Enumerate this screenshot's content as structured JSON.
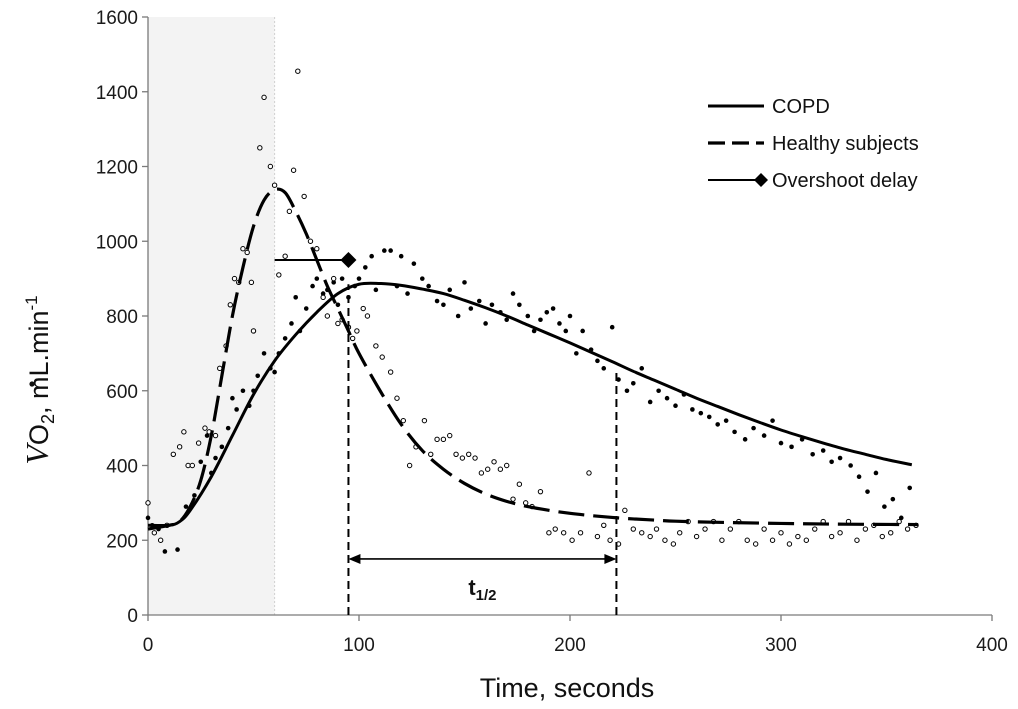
{
  "chart_data": {
    "type": "scatter",
    "xlabel": "Time, seconds",
    "ylabel": {
      "v": "V",
      "o": "O",
      "sub": "2",
      "unit": ", mL.min",
      "sup": "-1"
    },
    "xlim": [
      0,
      400
    ],
    "ylim": [
      0,
      1600
    ],
    "x_ticks": [
      "0",
      "100",
      "200",
      "300",
      "400"
    ],
    "y_ticks": [
      "0",
      "200",
      "400",
      "600",
      "800",
      "1000",
      "1200",
      "1400",
      "1600"
    ],
    "grid": false,
    "legend_position": "top-right",
    "shaded_region": {
      "x": [
        0,
        60
      ],
      "color": "#f3f3f3"
    },
    "colors": {
      "line": "#000000",
      "shade": "#f3f3f3"
    },
    "series": [
      {
        "name": "COPD",
        "style": "solid",
        "curve": [
          [
            0,
            240
          ],
          [
            10,
            240
          ],
          [
            15,
            250
          ],
          [
            20,
            280
          ],
          [
            30,
            370
          ],
          [
            40,
            480
          ],
          [
            50,
            590
          ],
          [
            60,
            680
          ],
          [
            70,
            750
          ],
          [
            80,
            810
          ],
          [
            90,
            860
          ],
          [
            100,
            885
          ],
          [
            110,
            887
          ],
          [
            120,
            882
          ],
          [
            130,
            872
          ],
          [
            140,
            860
          ],
          [
            150,
            842
          ],
          [
            160,
            822
          ],
          [
            170,
            800
          ],
          [
            180,
            776
          ],
          [
            190,
            752
          ],
          [
            200,
            728
          ],
          [
            210,
            703
          ],
          [
            220,
            678
          ],
          [
            230,
            652
          ],
          [
            240,
            628
          ],
          [
            250,
            604
          ],
          [
            260,
            580
          ],
          [
            270,
            558
          ],
          [
            280,
            536
          ],
          [
            290,
            515
          ],
          [
            300,
            495
          ],
          [
            310,
            477
          ],
          [
            320,
            460
          ],
          [
            330,
            444
          ],
          [
            340,
            430
          ],
          [
            350,
            416
          ],
          [
            362,
            402
          ]
        ],
        "points": [
          [
            0,
            260
          ],
          [
            2,
            240
          ],
          [
            5,
            230
          ],
          [
            8,
            170
          ],
          [
            14,
            175
          ],
          [
            18,
            290
          ],
          [
            22,
            320
          ],
          [
            25,
            410
          ],
          [
            28,
            480
          ],
          [
            30,
            380
          ],
          [
            32,
            420
          ],
          [
            35,
            450
          ],
          [
            38,
            500
          ],
          [
            40,
            580
          ],
          [
            42,
            550
          ],
          [
            45,
            600
          ],
          [
            48,
            560
          ],
          [
            50,
            600
          ],
          [
            52,
            640
          ],
          [
            55,
            700
          ],
          [
            58,
            660
          ],
          [
            60,
            650
          ],
          [
            62,
            700
          ],
          [
            65,
            740
          ],
          [
            68,
            780
          ],
          [
            70,
            850
          ],
          [
            72,
            760
          ],
          [
            75,
            820
          ],
          [
            78,
            880
          ],
          [
            80,
            900
          ],
          [
            83,
            860
          ],
          [
            85,
            870
          ],
          [
            88,
            890
          ],
          [
            90,
            830
          ],
          [
            92,
            900
          ],
          [
            95,
            850
          ],
          [
            98,
            880
          ],
          [
            100,
            900
          ],
          [
            103,
            930
          ],
          [
            106,
            960
          ],
          [
            108,
            870
          ],
          [
            112,
            975
          ],
          [
            115,
            975
          ],
          [
            118,
            880
          ],
          [
            120,
            960
          ],
          [
            123,
            860
          ],
          [
            126,
            940
          ],
          [
            130,
            900
          ],
          [
            133,
            880
          ],
          [
            137,
            840
          ],
          [
            140,
            830
          ],
          [
            143,
            870
          ],
          [
            147,
            800
          ],
          [
            150,
            890
          ],
          [
            153,
            820
          ],
          [
            157,
            840
          ],
          [
            160,
            780
          ],
          [
            163,
            830
          ],
          [
            167,
            810
          ],
          [
            170,
            790
          ],
          [
            173,
            860
          ],
          [
            176,
            830
          ],
          [
            180,
            800
          ],
          [
            183,
            760
          ],
          [
            186,
            790
          ],
          [
            189,
            810
          ],
          [
            192,
            820
          ],
          [
            195,
            780
          ],
          [
            198,
            760
          ],
          [
            200,
            800
          ],
          [
            203,
            700
          ],
          [
            206,
            760
          ],
          [
            210,
            710
          ],
          [
            213,
            680
          ],
          [
            216,
            660
          ],
          [
            220,
            770
          ],
          [
            223,
            630
          ],
          [
            227,
            600
          ],
          [
            230,
            620
          ],
          [
            234,
            660
          ],
          [
            238,
            570
          ],
          [
            242,
            600
          ],
          [
            246,
            580
          ],
          [
            250,
            560
          ],
          [
            254,
            590
          ],
          [
            258,
            550
          ],
          [
            262,
            540
          ],
          [
            266,
            530
          ],
          [
            270,
            510
          ],
          [
            274,
            520
          ],
          [
            278,
            490
          ],
          [
            283,
            470
          ],
          [
            287,
            500
          ],
          [
            292,
            480
          ],
          [
            296,
            520
          ],
          [
            300,
            460
          ],
          [
            305,
            450
          ],
          [
            310,
            470
          ],
          [
            315,
            430
          ],
          [
            320,
            440
          ],
          [
            324,
            410
          ],
          [
            328,
            420
          ],
          [
            333,
            400
          ],
          [
            337,
            370
          ],
          [
            341,
            330
          ],
          [
            345,
            380
          ],
          [
            349,
            290
          ],
          [
            353,
            310
          ],
          [
            357,
            260
          ],
          [
            361,
            340
          ]
        ]
      },
      {
        "name": "Healthy subjects",
        "style": "dashed",
        "curve": [
          [
            0,
            230
          ],
          [
            10,
            240
          ],
          [
            15,
            250
          ],
          [
            20,
            290
          ],
          [
            25,
            360
          ],
          [
            30,
            480
          ],
          [
            35,
            640
          ],
          [
            40,
            800
          ],
          [
            45,
            930
          ],
          [
            50,
            1040
          ],
          [
            55,
            1110
          ],
          [
            60,
            1138
          ],
          [
            65,
            1130
          ],
          [
            70,
            1080
          ],
          [
            75,
            1020
          ],
          [
            80,
            950
          ],
          [
            85,
            880
          ],
          [
            90,
            820
          ],
          [
            95,
            760
          ],
          [
            100,
            700
          ],
          [
            110,
            600
          ],
          [
            120,
            510
          ],
          [
            130,
            440
          ],
          [
            140,
            390
          ],
          [
            150,
            352
          ],
          [
            160,
            324
          ],
          [
            170,
            304
          ],
          [
            180,
            290
          ],
          [
            190,
            280
          ],
          [
            200,
            272
          ],
          [
            210,
            266
          ],
          [
            220,
            261
          ],
          [
            230,
            257
          ],
          [
            240,
            254
          ],
          [
            250,
            251
          ],
          [
            270,
            248
          ],
          [
            300,
            245
          ],
          [
            330,
            243
          ],
          [
            365,
            242
          ]
        ],
        "points": [
          [
            0,
            300
          ],
          [
            3,
            220
          ],
          [
            6,
            200
          ],
          [
            9,
            240
          ],
          [
            12,
            430
          ],
          [
            15,
            450
          ],
          [
            17,
            490
          ],
          [
            19,
            400
          ],
          [
            21,
            400
          ],
          [
            24,
            460
          ],
          [
            27,
            500
          ],
          [
            29,
            490
          ],
          [
            32,
            480
          ],
          [
            34,
            660
          ],
          [
            37,
            720
          ],
          [
            39,
            830
          ],
          [
            41,
            900
          ],
          [
            43,
            890
          ],
          [
            45,
            980
          ],
          [
            47,
            970
          ],
          [
            49,
            890
          ],
          [
            50,
            760
          ],
          [
            53,
            1250
          ],
          [
            55,
            1385
          ],
          [
            58,
            1200
          ],
          [
            60,
            1150
          ],
          [
            62,
            910
          ],
          [
            65,
            960
          ],
          [
            67,
            1080
          ],
          [
            69,
            1190
          ],
          [
            71,
            1455
          ],
          [
            74,
            1120
          ],
          [
            77,
            1000
          ],
          [
            80,
            980
          ],
          [
            83,
            850
          ],
          [
            85,
            800
          ],
          [
            88,
            900
          ],
          [
            90,
            780
          ],
          [
            92,
            790
          ],
          [
            95,
            770
          ],
          [
            97,
            740
          ],
          [
            99,
            760
          ],
          [
            102,
            820
          ],
          [
            104,
            800
          ],
          [
            108,
            720
          ],
          [
            111,
            690
          ],
          [
            115,
            650
          ],
          [
            118,
            580
          ],
          [
            121,
            520
          ],
          [
            124,
            400
          ],
          [
            127,
            450
          ],
          [
            131,
            520
          ],
          [
            134,
            430
          ],
          [
            137,
            470
          ],
          [
            140,
            470
          ],
          [
            143,
            480
          ],
          [
            146,
            430
          ],
          [
            149,
            420
          ],
          [
            152,
            430
          ],
          [
            155,
            420
          ],
          [
            158,
            380
          ],
          [
            161,
            390
          ],
          [
            164,
            410
          ],
          [
            167,
            390
          ],
          [
            170,
            400
          ],
          [
            173,
            310
          ],
          [
            176,
            350
          ],
          [
            179,
            300
          ],
          [
            182,
            290
          ],
          [
            186,
            330
          ],
          [
            190,
            220
          ],
          [
            193,
            230
          ],
          [
            197,
            220
          ],
          [
            201,
            200
          ],
          [
            205,
            220
          ],
          [
            209,
            380
          ],
          [
            213,
            210
          ],
          [
            216,
            240
          ],
          [
            219,
            200
          ],
          [
            223,
            190
          ],
          [
            226,
            280
          ],
          [
            230,
            230
          ],
          [
            234,
            220
          ],
          [
            238,
            210
          ],
          [
            241,
            230
          ],
          [
            245,
            200
          ],
          [
            249,
            190
          ],
          [
            252,
            220
          ],
          [
            256,
            250
          ],
          [
            260,
            210
          ],
          [
            264,
            230
          ],
          [
            268,
            250
          ],
          [
            272,
            200
          ],
          [
            276,
            230
          ],
          [
            280,
            250
          ],
          [
            284,
            200
          ],
          [
            288,
            190
          ],
          [
            292,
            230
          ],
          [
            296,
            200
          ],
          [
            300,
            220
          ],
          [
            304,
            190
          ],
          [
            308,
            210
          ],
          [
            312,
            200
          ],
          [
            316,
            230
          ],
          [
            320,
            250
          ],
          [
            324,
            210
          ],
          [
            328,
            220
          ],
          [
            332,
            250
          ],
          [
            336,
            200
          ],
          [
            340,
            230
          ],
          [
            344,
            240
          ],
          [
            348,
            210
          ],
          [
            352,
            220
          ],
          [
            356,
            250
          ],
          [
            360,
            230
          ],
          [
            364,
            240
          ]
        ]
      },
      {
        "name": "Overshoot delay",
        "style": "solid-thin-diamond",
        "curve": [
          [
            60,
            950
          ],
          [
            95,
            950
          ]
        ],
        "points": []
      }
    ],
    "annotations": {
      "half_time_label": {
        "base": "t",
        "sub": "1/2"
      },
      "half_time_range": [
        95,
        222
      ],
      "half_time_arrow_y": 150,
      "drop_lines": [
        [
          95,
          0,
          885
        ],
        [
          222,
          0,
          650
        ]
      ]
    }
  }
}
